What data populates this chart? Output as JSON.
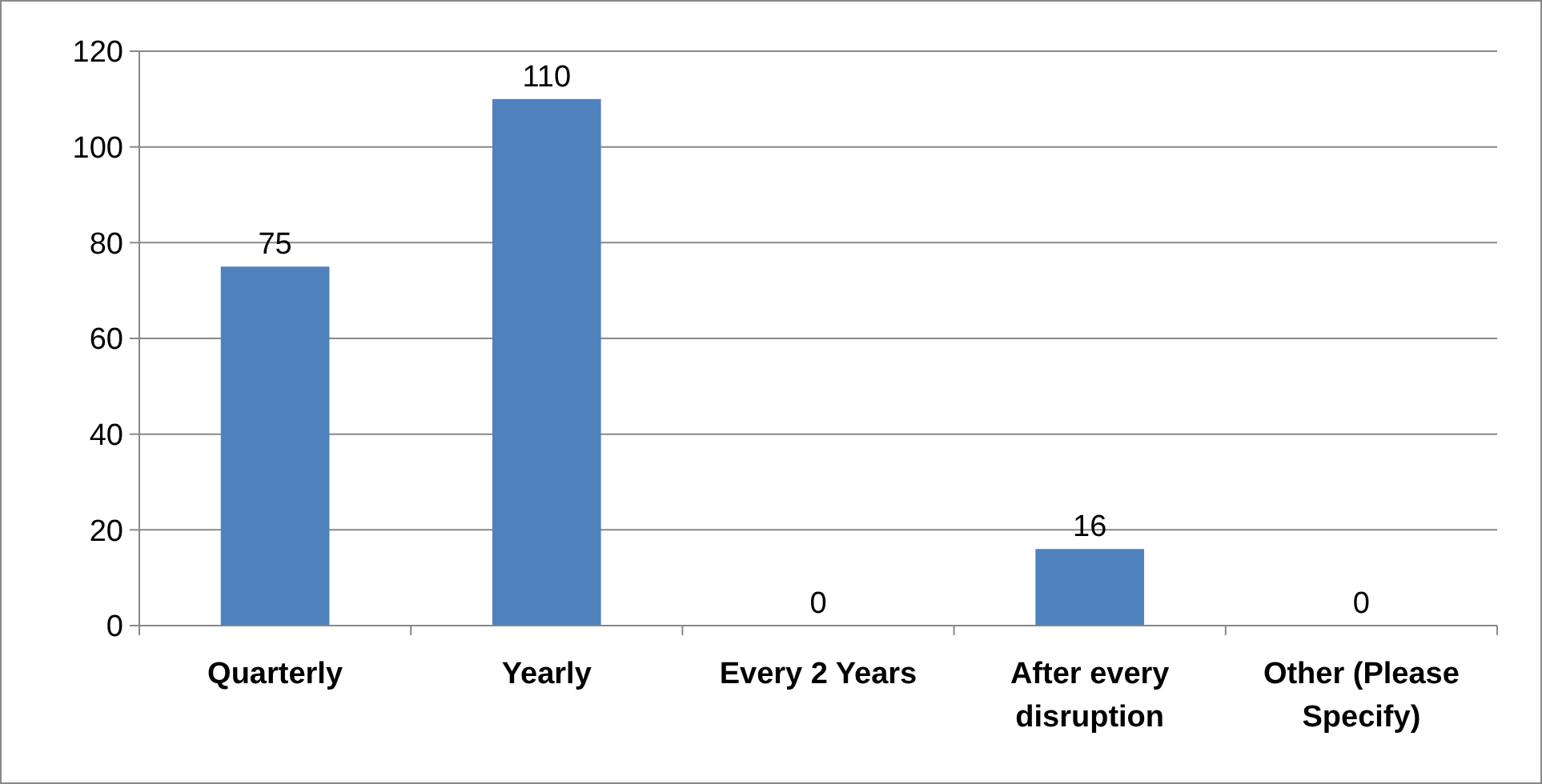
{
  "chart_data": {
    "type": "bar",
    "categories": [
      "Quarterly",
      "Yearly",
      "Every 2 Years",
      "After every disruption",
      "Other (Please Specify)"
    ],
    "values": [
      75,
      110,
      0,
      16,
      0
    ],
    "color": "#4f81bd",
    "ylim": [
      0,
      120
    ],
    "yticks": [
      0,
      20,
      40,
      60,
      80,
      100,
      120
    ],
    "grid": "y",
    "data_labels": true
  }
}
